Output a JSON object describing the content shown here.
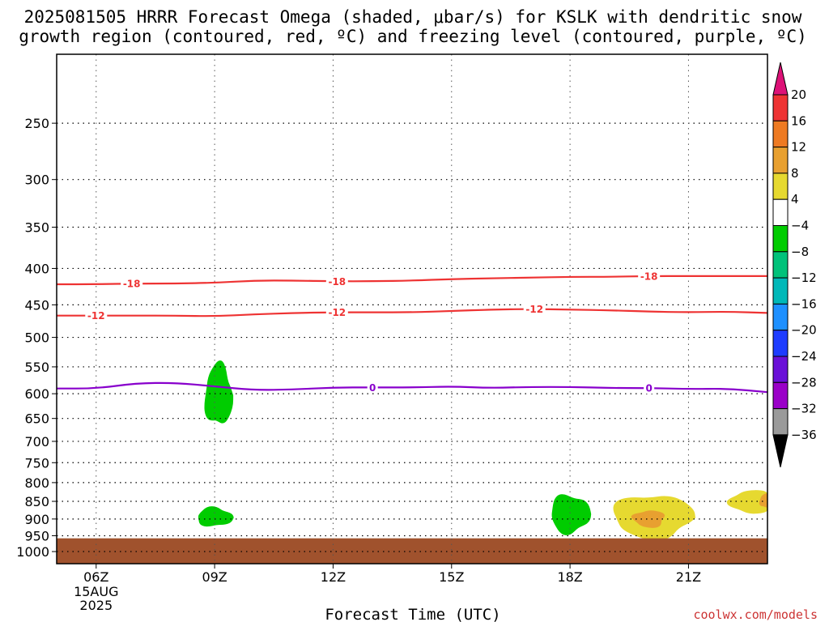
{
  "title": {
    "line1": "2025081505 HRRR Forecast Omega (shaded, μbar/s) for KSLK with dendritic snow",
    "line2": "growth region (contoured, red, ºC) and freezing level (contoured, purple, ºC)"
  },
  "xlabel": "Forecast Time (UTC)",
  "credit": "coolwx.com/models",
  "chart_data": {
    "type": "contour",
    "x_axis": {
      "ticks": [
        "06Z",
        "09Z",
        "12Z",
        "15Z",
        "18Z",
        "21Z"
      ],
      "tick_hours": [
        6,
        9,
        12,
        15,
        18,
        21
      ],
      "first_tick_extra": [
        "15AUG",
        "2025"
      ],
      "range_hours": [
        5,
        23
      ]
    },
    "y_axis": {
      "ticks": [
        250,
        300,
        350,
        400,
        450,
        500,
        550,
        600,
        650,
        700,
        750,
        800,
        850,
        900,
        950,
        1000
      ],
      "range_hpa": [
        200,
        1040
      ],
      "scale": "log",
      "grid": true
    },
    "contours": [
      {
        "group": "dendritic",
        "label": "-18",
        "color": "#ee3333",
        "label_hours": [
          6.9,
          12.1,
          20.0
        ],
        "points": [
          [
            5,
            421
          ],
          [
            6,
            421
          ],
          [
            7,
            420
          ],
          [
            8,
            420
          ],
          [
            9,
            419
          ],
          [
            10,
            416
          ],
          [
            11,
            416
          ],
          [
            12,
            417
          ],
          [
            13,
            417
          ],
          [
            14,
            416
          ],
          [
            15,
            414
          ],
          [
            16,
            413
          ],
          [
            17,
            412
          ],
          [
            18,
            411
          ],
          [
            19,
            411
          ],
          [
            20,
            410
          ],
          [
            21,
            410
          ],
          [
            22,
            410
          ],
          [
            23,
            410
          ]
        ]
      },
      {
        "group": "dendritic",
        "label": "-12",
        "color": "#ee3333",
        "label_hours": [
          6.0,
          12.1,
          17.1
        ],
        "points": [
          [
            5,
            466
          ],
          [
            6,
            466
          ],
          [
            7,
            466
          ],
          [
            8,
            466
          ],
          [
            9,
            467
          ],
          [
            10,
            464
          ],
          [
            11,
            462
          ],
          [
            12,
            461
          ],
          [
            13,
            461
          ],
          [
            14,
            461
          ],
          [
            15,
            459
          ],
          [
            16,
            457
          ],
          [
            17,
            456
          ],
          [
            18,
            457
          ],
          [
            19,
            458
          ],
          [
            20,
            460
          ],
          [
            21,
            461
          ],
          [
            22,
            460
          ],
          [
            23,
            462
          ]
        ]
      },
      {
        "group": "freezing_level",
        "label": "0",
        "color": "#8800cc",
        "label_hours": [
          13.0,
          20.0
        ],
        "points": [
          [
            5,
            590
          ],
          [
            6,
            590
          ],
          [
            7,
            580
          ],
          [
            8,
            579
          ],
          [
            9,
            586
          ],
          [
            10,
            593
          ],
          [
            11,
            592
          ],
          [
            12,
            588
          ],
          [
            13,
            588
          ],
          [
            14,
            588
          ],
          [
            15,
            586
          ],
          [
            16,
            589
          ],
          [
            17,
            587
          ],
          [
            18,
            587
          ],
          [
            19,
            589
          ],
          [
            20,
            589
          ],
          [
            21,
            591
          ],
          [
            22,
            590
          ],
          [
            23,
            597
          ]
        ]
      }
    ],
    "omega_regions": [
      {
        "value_range": [
          -8,
          -4
        ],
        "color": "#00cc00",
        "center": [
          9.1,
          603
        ],
        "radius_h": 0.35,
        "pressure_span": [
          545,
          665
        ]
      },
      {
        "value_range": [
          -8,
          -4
        ],
        "color": "#00cc00",
        "center": [
          9.0,
          896
        ],
        "radius_h": 0.45,
        "pressure_span": [
          867,
          922
        ]
      },
      {
        "value_range": [
          -8,
          -4
        ],
        "color": "#00cc00",
        "center": [
          18.0,
          886
        ],
        "radius_h": 0.5,
        "pressure_span": [
          832,
          942
        ]
      },
      {
        "value_range": [
          4,
          8
        ],
        "color": "#e6d930",
        "center": [
          20.1,
          897
        ],
        "radius_h": 1.0,
        "pressure_span": [
          830,
          958
        ]
      },
      {
        "value_range": [
          8,
          12
        ],
        "color": "#e8a030",
        "center": [
          20.0,
          898
        ],
        "radius_h": 0.4,
        "pressure_span": [
          875,
          925
        ]
      },
      {
        "value_range": [
          4,
          8
        ],
        "color": "#e6d930",
        "center": [
          22.6,
          850
        ],
        "radius_h": 0.55,
        "pressure_span": [
          820,
          885
        ]
      },
      {
        "value_range": [
          8,
          12
        ],
        "color": "#e8a030",
        "center": [
          22.95,
          848
        ],
        "radius_h": 0.15,
        "pressure_span": [
          830,
          868
        ]
      }
    ],
    "terrain": {
      "color": "#a0522d",
      "surface_pressure_hpa": 958
    },
    "colorbar": {
      "labels": [
        20,
        16,
        12,
        8,
        4,
        -4,
        -8,
        -12,
        -16,
        -20,
        -24,
        -28,
        -32,
        -36
      ],
      "colors": [
        "#ee3333",
        "#ee7a22",
        "#e8a030",
        "#e6d930",
        "#ffffff",
        "#00cc00",
        "#00c27a",
        "#00b8b8",
        "#1e90ff",
        "#1e3cff",
        "#6a10d8",
        "#9a00c8",
        "#9a9a9a"
      ],
      "top_arrow_color": "#dd1177",
      "bottom_arrow_color": "#000000"
    }
  }
}
